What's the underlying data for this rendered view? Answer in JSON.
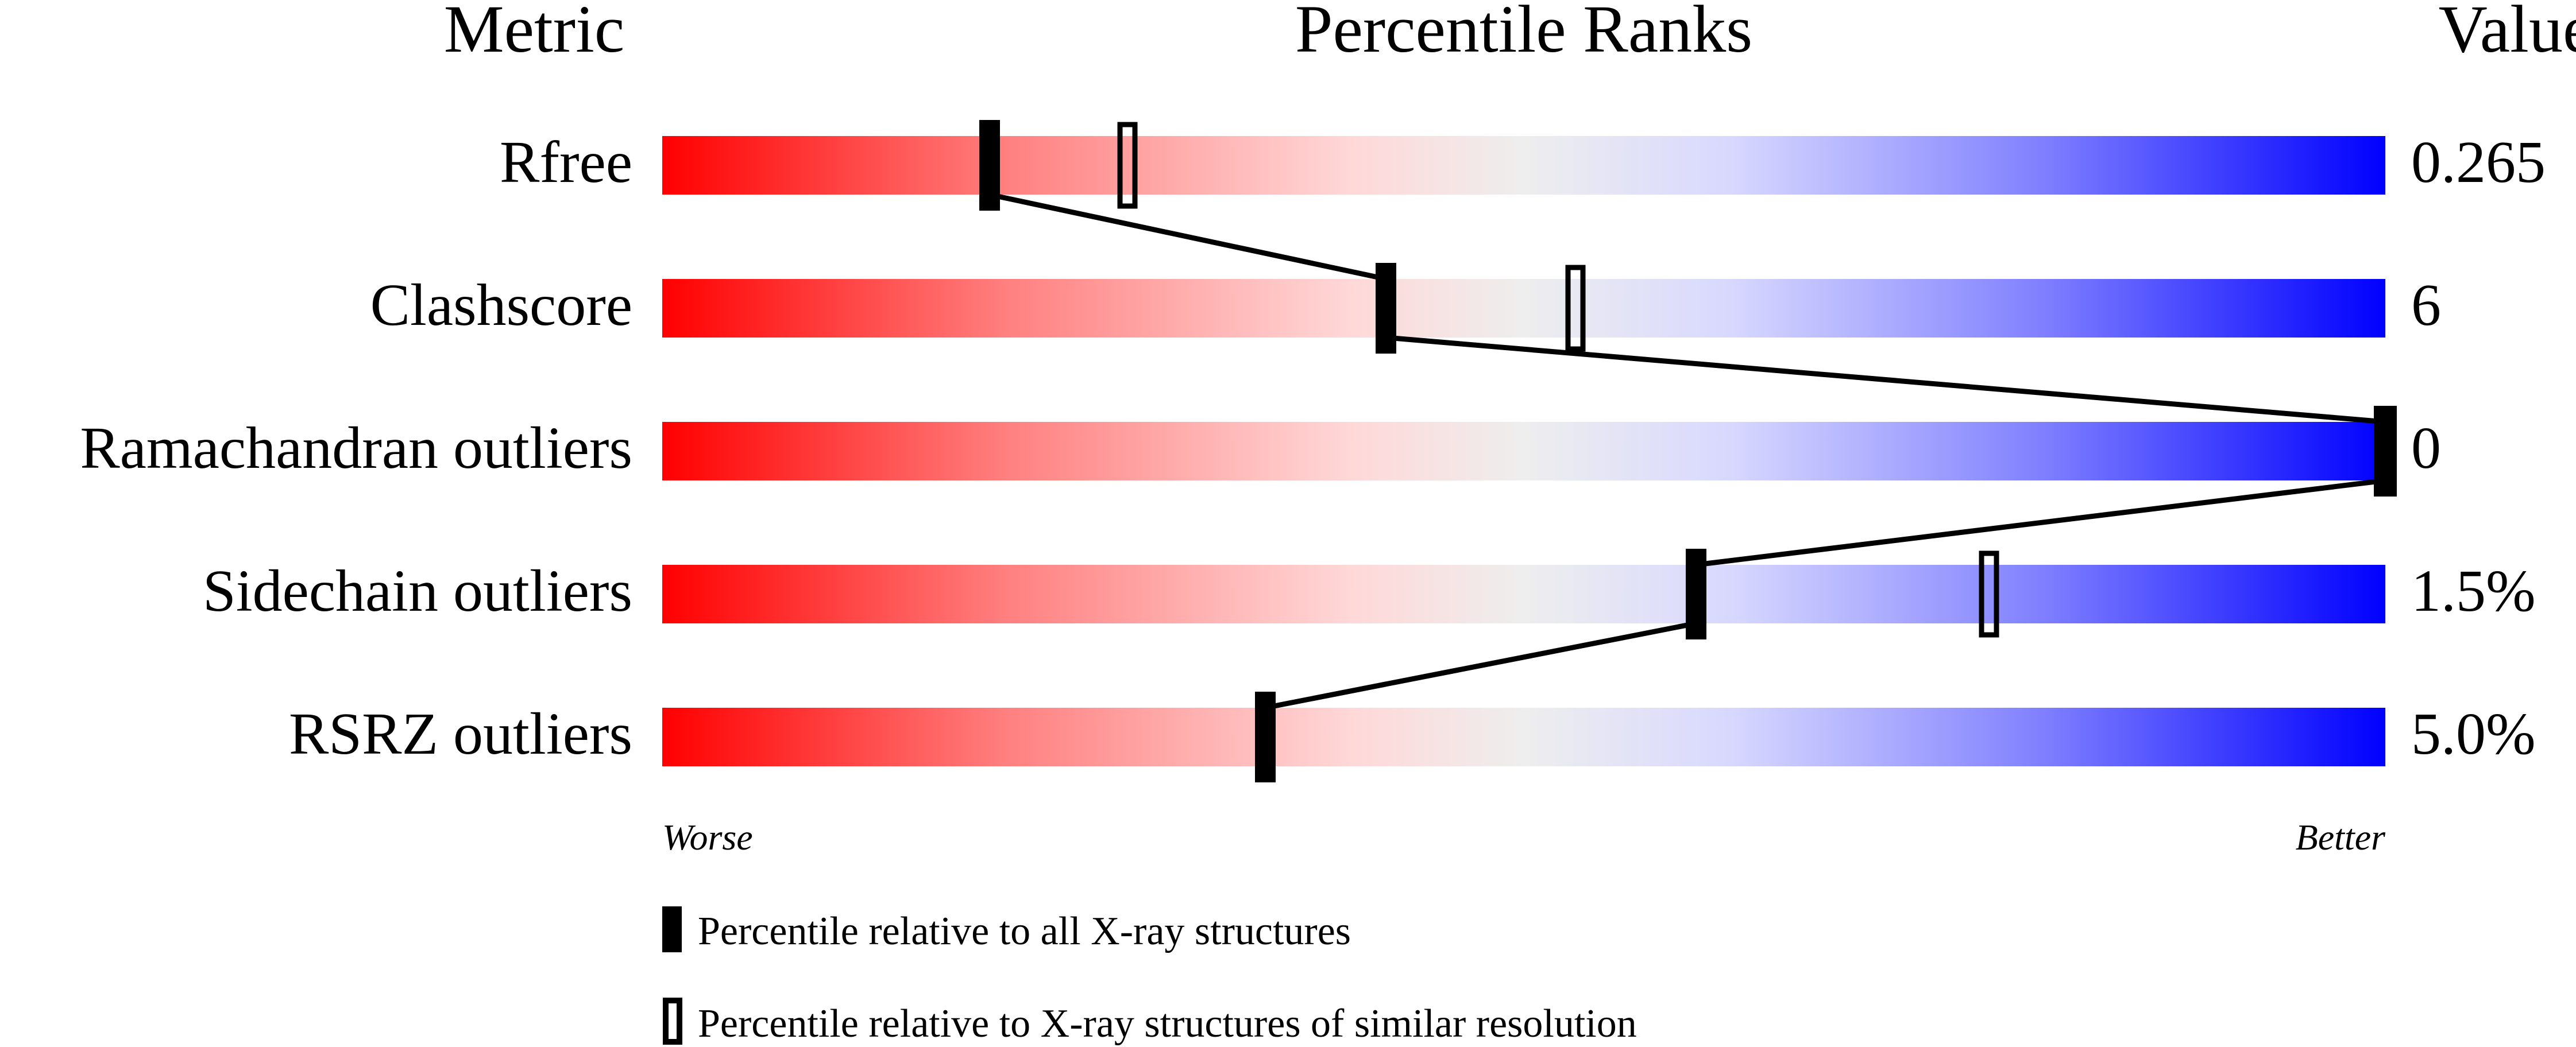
{
  "chart_data": {
    "type": "percentile-slider",
    "headers": {
      "metric": "Metric",
      "ranks": "Percentile Ranks",
      "value": "Value"
    },
    "xlim": [
      0,
      100
    ],
    "axis_labels": {
      "left": "Worse",
      "right": "Better"
    },
    "gradient_colors": [
      "#ff0000",
      "#ff8080",
      "#ffd8d8",
      "#eeeeee",
      "#d8d8ff",
      "#8080ff",
      "#0000ff"
    ],
    "metrics": [
      {
        "name": "Rfree",
        "value": "0.265",
        "percentile_all": 19,
        "percentile_similar": 27
      },
      {
        "name": "Clashscore",
        "value": "6",
        "percentile_all": 42,
        "percentile_similar": 53
      },
      {
        "name": "Ramachandran outliers",
        "value": "0",
        "percentile_all": 100,
        "percentile_similar": 100
      },
      {
        "name": "Sidechain outliers",
        "value": "1.5%",
        "percentile_all": 60,
        "percentile_similar": 77
      },
      {
        "name": "RSRZ outliers",
        "value": "5.0%",
        "percentile_all": 35,
        "percentile_similar": null
      }
    ],
    "legend": [
      {
        "marker": "filled",
        "label": "Percentile relative to all X-ray structures"
      },
      {
        "marker": "hollow",
        "label": "Percentile relative to X-ray structures of similar resolution"
      }
    ]
  }
}
